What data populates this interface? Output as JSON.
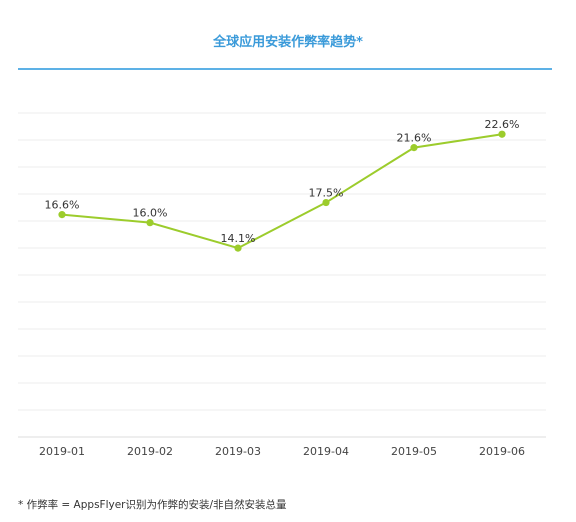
{
  "title": "全球应用安装作弊率趋势*",
  "footnote": "* 作弊率 = AppsFlyer识别为作弊的安装/非自然安装总量",
  "chart_data": {
    "type": "line",
    "title": "全球应用安装作弊率趋势*",
    "categories": [
      "2019-01",
      "2019-02",
      "2019-03",
      "2019-04",
      "2019-05",
      "2019-06"
    ],
    "series": [
      {
        "values": [
          16.6,
          16.0,
          14.1,
          17.5,
          21.6,
          22.6
        ],
        "labels": [
          "16.6%",
          "16.0%",
          "14.1%",
          "17.5%",
          "21.6%",
          "22.6%"
        ]
      }
    ],
    "ylim": [
      0,
      26.2
    ],
    "y_unit": "%",
    "grid": true,
    "y_axis_labels_shown": false,
    "line_color": "#9ccc2c",
    "grid_color": "#eeeeee"
  }
}
